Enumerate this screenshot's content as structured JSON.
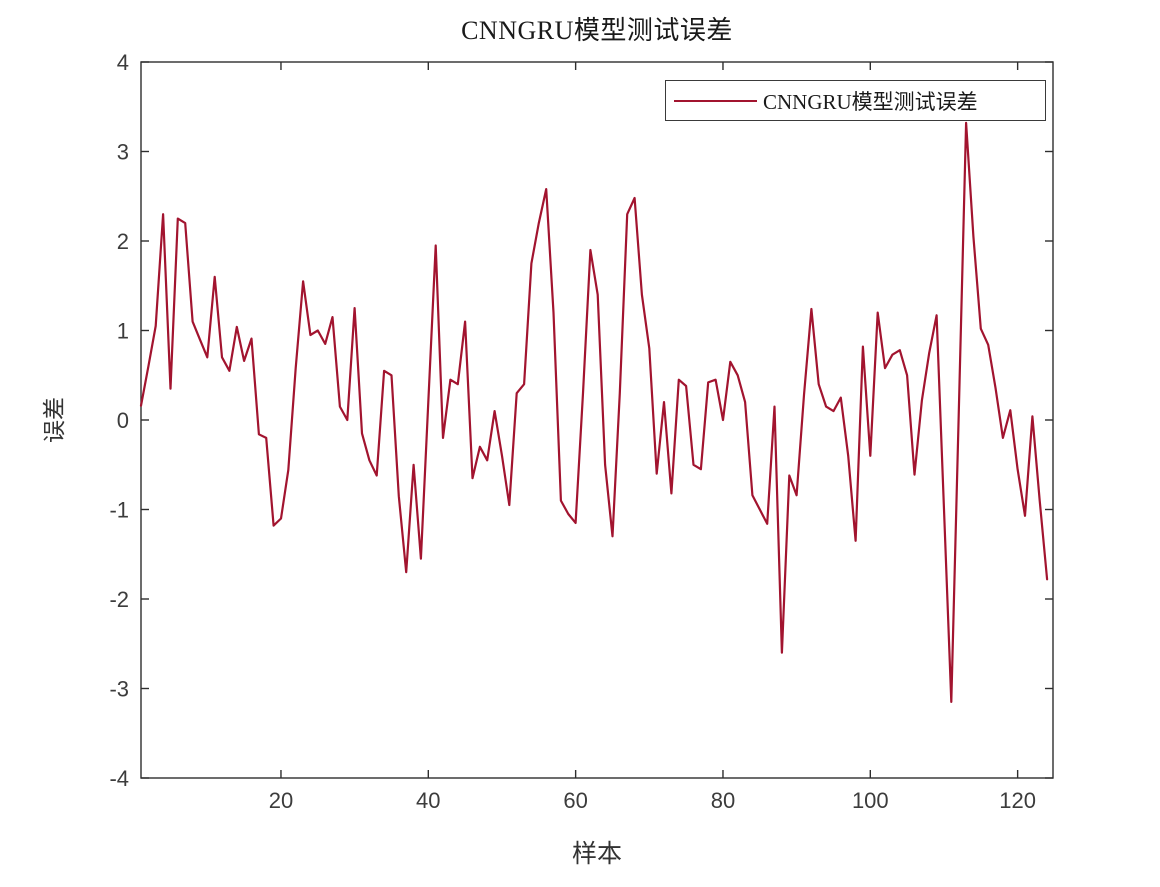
{
  "window": {
    "background": "#ffffff"
  },
  "chart_data": {
    "type": "line",
    "title": "CNNGRU模型测试误差",
    "xlabel": "样本",
    "ylabel": "误差",
    "legend": {
      "label": "CNNGRU模型测试误差",
      "position": "top-right",
      "line_color": "#A2142F"
    },
    "line_color": "#A2142F",
    "line_width": 2.2,
    "axis_color": "#2e2e2e",
    "tick_label_color": "#3c3c3c",
    "grid": false,
    "xlim": [
      1,
      124.8
    ],
    "ylim": [
      -4,
      4
    ],
    "x_ticks": [
      20,
      40,
      60,
      80,
      100,
      120
    ],
    "y_ticks": [
      -4,
      -3,
      -2,
      -1,
      0,
      1,
      2,
      3,
      4
    ],
    "x_start": 1,
    "x_step": 1,
    "values": [
      0.16,
      0.6,
      1.05,
      2.3,
      0.35,
      2.25,
      2.2,
      1.1,
      0.9,
      0.7,
      1.6,
      0.7,
      0.55,
      1.04,
      0.66,
      0.91,
      -0.16,
      -0.2,
      -1.18,
      -1.1,
      -0.56,
      0.58,
      1.55,
      0.95,
      1.0,
      0.85,
      1.15,
      0.15,
      0.0,
      1.25,
      -0.15,
      -0.45,
      -0.62,
      0.55,
      0.5,
      -0.85,
      -1.7,
      -0.5,
      -1.55,
      0.2,
      1.95,
      -0.2,
      0.45,
      0.4,
      1.1,
      -0.65,
      -0.3,
      -0.45,
      0.1,
      -0.4,
      -0.95,
      0.3,
      0.4,
      1.75,
      2.2,
      2.58,
      1.2,
      -0.9,
      -1.05,
      -1.15,
      0.3,
      1.9,
      1.4,
      -0.5,
      -1.3,
      0.3,
      2.3,
      2.48,
      1.4,
      0.8,
      -0.6,
      0.2,
      -0.82,
      0.45,
      0.38,
      -0.5,
      -0.55,
      0.42,
      0.45,
      0.0,
      0.65,
      0.5,
      0.2,
      -0.84,
      -1.0,
      -1.16,
      0.15,
      -2.6,
      -0.62,
      -0.84,
      0.28,
      1.24,
      0.4,
      0.15,
      0.1,
      0.25,
      -0.4,
      -1.35,
      0.82,
      -0.4,
      1.2,
      0.58,
      0.73,
      0.78,
      0.5,
      -0.61,
      0.22,
      0.75,
      1.17,
      -1.0,
      -3.15,
      0.05,
      3.32,
      2.05,
      1.02,
      0.84,
      0.36,
      -0.2,
      0.11,
      -0.55,
      -1.07,
      0.04,
      -0.9,
      -1.78
    ]
  }
}
